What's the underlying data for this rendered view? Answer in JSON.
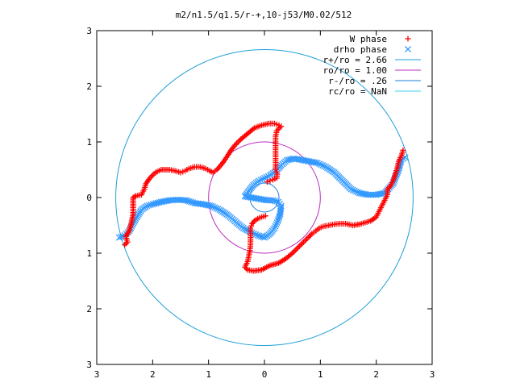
{
  "chart_data": {
    "type": "scatter",
    "title": "m2/n1.5/q1.5/r-+,10-j53/M0.02/512",
    "xlabel": "",
    "ylabel": "",
    "xlim": [
      -3,
      3
    ],
    "ylim": [
      -3,
      3
    ],
    "x_ticks": [
      -3,
      -2,
      -1,
      0,
      1,
      2,
      3
    ],
    "y_ticks": [
      -3,
      -2,
      -1,
      0,
      1,
      2,
      3
    ],
    "x_tick_labels": [
      "3",
      "2",
      "1",
      "0",
      "1",
      "2",
      "3"
    ],
    "y_tick_labels": [
      "3",
      "2",
      "1",
      "0",
      "1",
      "2",
      "3"
    ],
    "grid": false,
    "legend_position": "top-right",
    "series": [
      {
        "name": "W phase",
        "kind": "points",
        "marker": "plus",
        "color": "#ff0000",
        "points": [
          [
            -2.5,
            -0.85
          ],
          [
            -2.45,
            -0.8
          ],
          [
            -2.48,
            -0.7
          ],
          [
            -2.42,
            -0.6
          ],
          [
            -2.38,
            -0.45
          ],
          [
            -2.35,
            -0.3
          ],
          [
            -2.35,
            -0.15
          ],
          [
            -2.35,
            0.0
          ],
          [
            -2.3,
            0.03
          ],
          [
            -2.2,
            0.05
          ],
          [
            -2.15,
            0.15
          ],
          [
            -2.12,
            0.25
          ],
          [
            -2.05,
            0.35
          ],
          [
            -1.95,
            0.45
          ],
          [
            -1.85,
            0.5
          ],
          [
            -1.7,
            0.5
          ],
          [
            -1.6,
            0.48
          ],
          [
            -1.5,
            0.45
          ],
          [
            -1.42,
            0.48
          ],
          [
            -1.35,
            0.52
          ],
          [
            -1.25,
            0.55
          ],
          [
            -1.15,
            0.55
          ],
          [
            -1.05,
            0.52
          ],
          [
            -0.98,
            0.48
          ],
          [
            -0.92,
            0.45
          ],
          [
            -0.85,
            0.5
          ],
          [
            -0.78,
            0.58
          ],
          [
            -0.72,
            0.66
          ],
          [
            -0.66,
            0.75
          ],
          [
            -0.6,
            0.85
          ],
          [
            -0.52,
            0.95
          ],
          [
            -0.42,
            1.05
          ],
          [
            -0.3,
            1.15
          ],
          [
            -0.18,
            1.25
          ],
          [
            -0.05,
            1.3
          ],
          [
            0.08,
            1.33
          ],
          [
            0.18,
            1.33
          ],
          [
            0.26,
            1.3
          ],
          [
            0.3,
            1.28
          ],
          [
            0.22,
            1.2
          ],
          [
            0.2,
            1.1
          ],
          [
            0.2,
            1.0
          ],
          [
            0.2,
            0.9
          ],
          [
            0.2,
            0.8
          ],
          [
            0.2,
            0.7
          ],
          [
            0.2,
            0.6
          ],
          [
            0.2,
            0.5
          ],
          [
            0.23,
            0.42
          ],
          [
            0.22,
            0.35
          ],
          [
            0.15,
            0.32
          ],
          [
            0.1,
            0.3
          ],
          [
            0.05,
            0.28
          ],
          [
            2.48,
            0.85
          ],
          [
            2.45,
            0.75
          ],
          [
            2.4,
            0.65
          ],
          [
            2.38,
            0.55
          ],
          [
            2.35,
            0.45
          ],
          [
            2.3,
            0.3
          ],
          [
            2.25,
            0.2
          ],
          [
            2.2,
            0.15
          ],
          [
            2.2,
            0.05
          ],
          [
            2.15,
            -0.05
          ],
          [
            2.1,
            -0.15
          ],
          [
            2.05,
            -0.25
          ],
          [
            2.0,
            -0.35
          ],
          [
            1.9,
            -0.42
          ],
          [
            1.8,
            -0.45
          ],
          [
            1.7,
            -0.48
          ],
          [
            1.58,
            -0.5
          ],
          [
            1.45,
            -0.47
          ],
          [
            1.35,
            -0.47
          ],
          [
            1.25,
            -0.48
          ],
          [
            1.15,
            -0.5
          ],
          [
            1.05,
            -0.52
          ],
          [
            0.98,
            -0.55
          ],
          [
            0.92,
            -0.6
          ],
          [
            0.85,
            -0.65
          ],
          [
            0.78,
            -0.72
          ],
          [
            0.7,
            -0.8
          ],
          [
            0.6,
            -0.9
          ],
          [
            0.5,
            -1.0
          ],
          [
            0.38,
            -1.1
          ],
          [
            0.25,
            -1.18
          ],
          [
            0.1,
            -1.22
          ],
          [
            -0.05,
            -1.3
          ],
          [
            -0.2,
            -1.32
          ],
          [
            -0.3,
            -1.3
          ],
          [
            -0.35,
            -1.25
          ],
          [
            -0.3,
            -1.15
          ],
          [
            -0.28,
            -1.05
          ],
          [
            -0.26,
            -0.95
          ],
          [
            -0.25,
            -0.85
          ],
          [
            -0.25,
            -0.75
          ],
          [
            -0.25,
            -0.65
          ],
          [
            -0.25,
            -0.55
          ],
          [
            -0.22,
            -0.47
          ],
          [
            -0.18,
            -0.42
          ],
          [
            -0.12,
            -0.38
          ],
          [
            -0.05,
            -0.35
          ],
          [
            0.02,
            -0.33
          ]
        ]
      },
      {
        "name": "drho phase",
        "kind": "points",
        "marker": "cross",
        "color": "#3399ff",
        "points": [
          [
            -2.6,
            -0.72
          ],
          [
            -2.5,
            -0.68
          ],
          [
            -2.42,
            -0.6
          ],
          [
            -2.3,
            -0.38
          ],
          [
            -2.2,
            -0.22
          ],
          [
            -2.1,
            -0.15
          ],
          [
            -2.0,
            -0.12
          ],
          [
            -1.85,
            -0.08
          ],
          [
            -1.7,
            -0.05
          ],
          [
            -1.55,
            -0.04
          ],
          [
            -1.4,
            -0.05
          ],
          [
            -1.25,
            -0.1
          ],
          [
            -1.1,
            -0.12
          ],
          [
            -0.95,
            -0.15
          ],
          [
            -0.8,
            -0.22
          ],
          [
            -0.65,
            -0.32
          ],
          [
            -0.5,
            -0.45
          ],
          [
            -0.38,
            -0.55
          ],
          [
            -0.25,
            -0.62
          ],
          [
            -0.12,
            -0.68
          ],
          [
            0.0,
            -0.72
          ],
          [
            0.1,
            -0.65
          ],
          [
            0.18,
            -0.55
          ],
          [
            0.24,
            -0.42
          ],
          [
            0.28,
            -0.3
          ],
          [
            0.3,
            -0.15
          ],
          [
            0.25,
            -0.08
          ],
          [
            0.15,
            -0.05
          ],
          [
            0.05,
            -0.05
          ],
          [
            -0.35,
            0.02
          ],
          [
            -0.28,
            0.12
          ],
          [
            -0.2,
            0.22
          ],
          [
            -0.1,
            0.3
          ],
          [
            0.0,
            0.35
          ],
          [
            0.1,
            0.4
          ],
          [
            0.2,
            0.47
          ],
          [
            0.3,
            0.58
          ],
          [
            0.4,
            0.67
          ],
          [
            0.52,
            0.7
          ],
          [
            0.65,
            0.68
          ],
          [
            0.8,
            0.65
          ],
          [
            0.95,
            0.62
          ],
          [
            1.1,
            0.55
          ],
          [
            1.25,
            0.45
          ],
          [
            1.4,
            0.3
          ],
          [
            1.55,
            0.15
          ],
          [
            1.7,
            0.08
          ],
          [
            1.85,
            0.05
          ],
          [
            2.0,
            0.05
          ],
          [
            2.15,
            0.08
          ],
          [
            2.3,
            0.25
          ],
          [
            2.4,
            0.5
          ],
          [
            2.45,
            0.68
          ],
          [
            2.52,
            0.72
          ]
        ]
      },
      {
        "name": "r+/ro = 2.66",
        "kind": "circle",
        "radius": 2.66,
        "color": "#1f9fd8"
      },
      {
        "name": "ro/ro = 1.00",
        "kind": "circle",
        "radius": 1.0,
        "color": "#bf2fbf"
      },
      {
        "name": "r-/ro = .26",
        "kind": "circle",
        "radius": 0.26,
        "color": "#1f7fdf"
      },
      {
        "name": "rc/ro = NaN",
        "kind": "circle",
        "radius": null,
        "color": "#3fd0e8"
      }
    ]
  }
}
